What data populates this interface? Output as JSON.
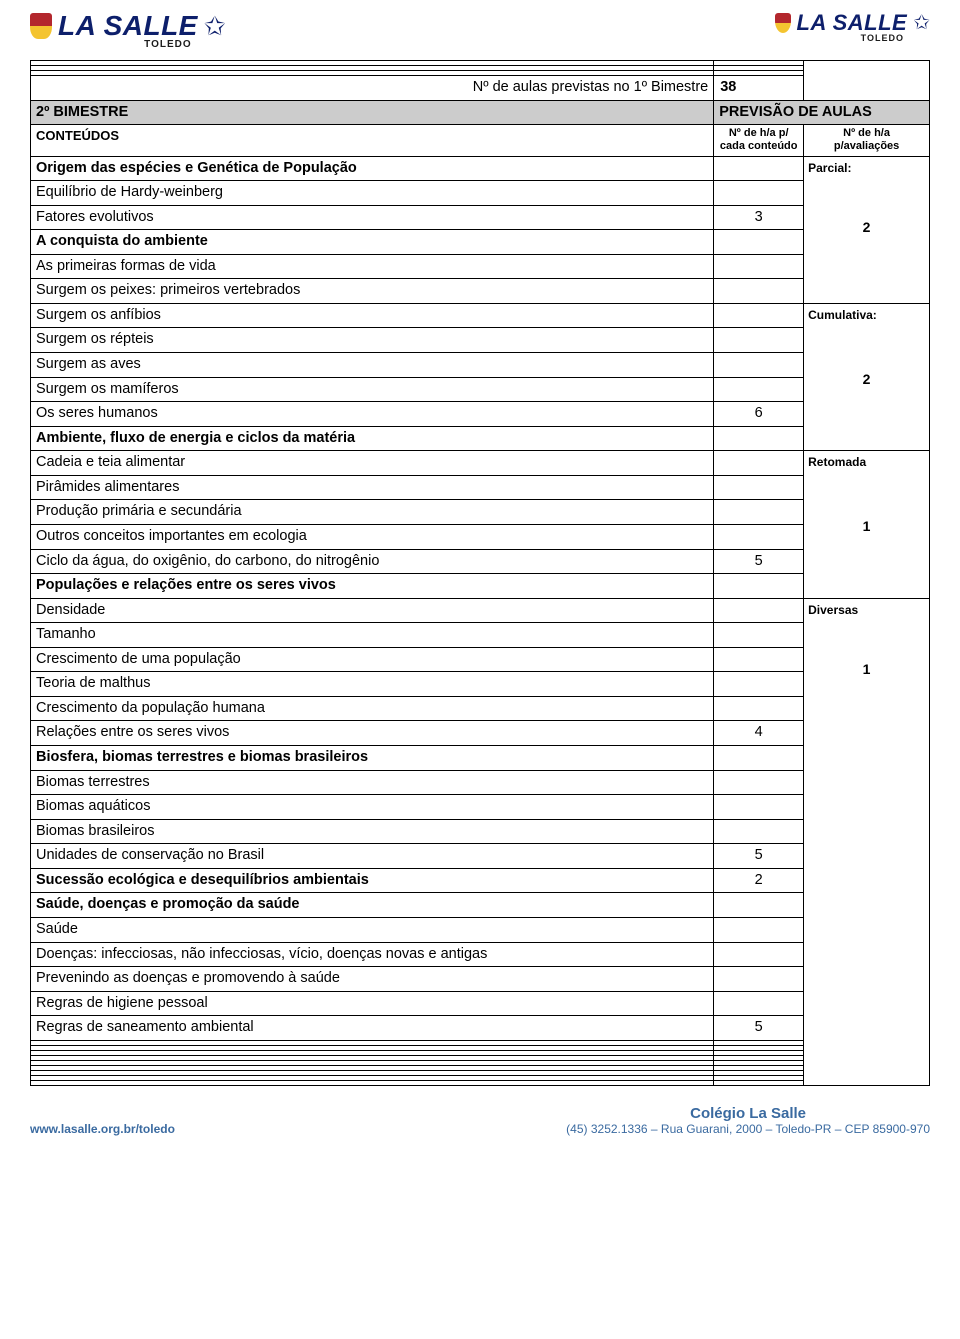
{
  "brand": {
    "name": "LA SALLE",
    "sub": "TOLEDO"
  },
  "totalRow": {
    "label": "Nº de aulas previstas no 1º Bimestre",
    "value": "38"
  },
  "bimestre": {
    "label": "2º BIMESTRE",
    "right": "PREVISÃO DE AULAS"
  },
  "headers": {
    "left": "CONTEÚDOS",
    "mid": "Nº de  h/a p/ cada conteúdo",
    "right": "Nº de h/a p/avaliações"
  },
  "rightMarkers": {
    "parcial": "Parcial:",
    "parcial_val": "2",
    "cumulativa": "Cumulativa:",
    "cumulativa_val": "2",
    "retomada": "Retomada",
    "retomada_val": "1",
    "diversas": "Diversas",
    "diversas_val": "1"
  },
  "rows": [
    {
      "text": "Origem das espécies e Genética de População",
      "bold": true,
      "mid": ""
    },
    {
      "text": "Equilíbrio de Hardy-weinberg",
      "mid": ""
    },
    {
      "text": "Fatores evolutivos",
      "mid": "3"
    },
    {
      "text": "A conquista do ambiente",
      "bold": true,
      "mid": ""
    },
    {
      "text": "As primeiras formas de vida",
      "mid": ""
    },
    {
      "text": "Surgem os peixes: primeiros vertebrados",
      "mid": ""
    },
    {
      "text": "Surgem os anfíbios",
      "mid": ""
    },
    {
      "text": "Surgem os répteis",
      "mid": ""
    },
    {
      "text": "Surgem as aves",
      "mid": ""
    },
    {
      "text": "Surgem os mamíferos",
      "mid": ""
    },
    {
      "text": "Os seres humanos",
      "mid": "6"
    },
    {
      "text": "Ambiente, fluxo de energia e ciclos da matéria",
      "bold": true,
      "mid": ""
    },
    {
      "text": "Cadeia e teia alimentar",
      "mid": ""
    },
    {
      "text": "Pirâmides alimentares",
      "mid": ""
    },
    {
      "text": "Produção primária e secundária",
      "mid": ""
    },
    {
      "text": "Outros conceitos importantes em ecologia",
      "mid": ""
    },
    {
      "text": "Ciclo da água, do oxigênio, do carbono, do nitrogênio",
      "mid": "5"
    },
    {
      "text": "Populações e relações entre os seres vivos",
      "bold": true,
      "mid": ""
    },
    {
      "text": "Densidade",
      "mid": ""
    },
    {
      "text": "Tamanho",
      "mid": ""
    },
    {
      "text": "Crescimento de uma população",
      "mid": ""
    },
    {
      "text": "Teoria de malthus",
      "mid": ""
    },
    {
      "text": "Crescimento da população humana",
      "mid": ""
    },
    {
      "text": "Relações entre os seres vivos",
      "mid": "4"
    },
    {
      "text": "Biosfera, biomas terrestres e biomas brasileiros",
      "bold": true,
      "mid": ""
    },
    {
      "text": "Biomas terrestres",
      "mid": ""
    },
    {
      "text": "Biomas aquáticos",
      "mid": ""
    },
    {
      "text": "Biomas brasileiros",
      "mid": ""
    },
    {
      "text": "Unidades de conservação no Brasil",
      "mid": "5"
    },
    {
      "text": "Sucessão ecológica e desequilíbrios ambientais",
      "bold": true,
      "mid": "2"
    },
    {
      "text": "Saúde, doenças e promoção da saúde",
      "bold": true,
      "mid": ""
    },
    {
      "text": "Saúde",
      "mid": ""
    },
    {
      "text": "Doenças: infecciosas, não infecciosas, vício, doenças novas e antigas",
      "mid": ""
    },
    {
      "text": "Prevenindo as doenças e promovendo à saúde",
      "mid": ""
    },
    {
      "text": "Regras de higiene pessoal",
      "mid": ""
    },
    {
      "text": "Regras de saneamento ambiental",
      "mid": "5"
    }
  ],
  "emptyRowsTop": 3,
  "emptyRowsBottom": 9,
  "footer": {
    "url": "www.lasalle.org.br/toledo",
    "school": "Colégio La Salle",
    "address": "(45) 3252.1336 – Rua Guarani, 2000 – Toledo-PR – CEP 85900-970"
  },
  "colors": {
    "border": "#0d2d6e",
    "gray": "#cccccc",
    "footer": "#3a6aa0"
  }
}
